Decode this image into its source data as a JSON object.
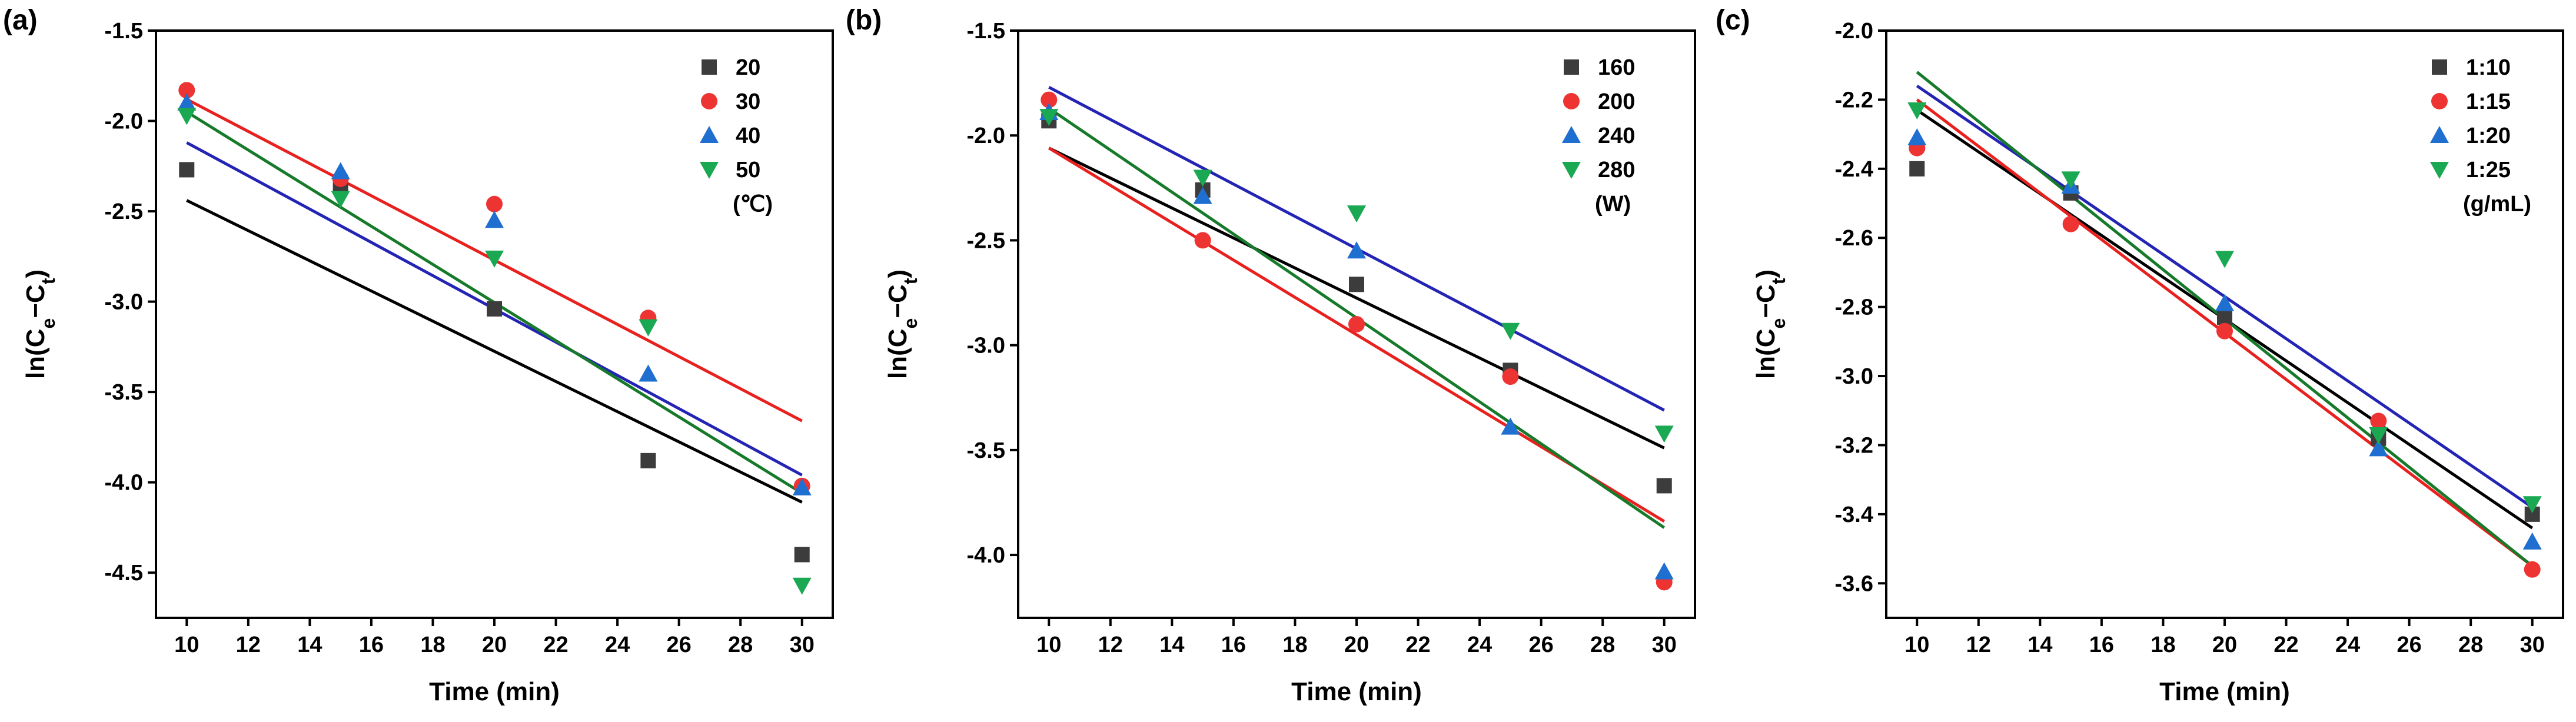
{
  "chart_data": [
    {
      "type": "scatter",
      "panel_label": "(a)",
      "xlabel": "Time (min)",
      "ylabel": {
        "pre": "ln(C",
        "sub1": "e",
        "mid": "−C",
        "sub2": "t",
        "post": ")"
      },
      "xlim": [
        9,
        31
      ],
      "ylim": [
        -4.75,
        -1.5
      ],
      "xticks": [
        10,
        12,
        14,
        16,
        18,
        20,
        22,
        24,
        26,
        28,
        30
      ],
      "yticks": [
        -4.5,
        -4.0,
        -3.5,
        -3.0,
        -2.5,
        -2.0,
        -1.5
      ],
      "ytick_labels": [
        "-4.5",
        "-4.0",
        "-3.5",
        "-3.0",
        "-2.5",
        "-2.0",
        "-1.5"
      ],
      "legend_unit": "(℃)",
      "legend_position": "top-right",
      "x": [
        10,
        15,
        20,
        25,
        30
      ],
      "series": [
        {
          "name": "20",
          "marker": "square",
          "color": "#3c3c3c",
          "line_color": "#000000",
          "values": [
            -2.27,
            -2.35,
            -3.04,
            -3.88,
            -4.4
          ],
          "fit": [
            -2.44,
            -4.11
          ]
        },
        {
          "name": "30",
          "marker": "circle",
          "color": "#ee3333",
          "line_color": "#e8201e",
          "values": [
            -1.83,
            -2.32,
            -2.46,
            -3.09,
            -4.02
          ],
          "fit": [
            -1.88,
            -3.66
          ]
        },
        {
          "name": "40",
          "marker": "triangle-up",
          "color": "#1f6fd0",
          "line_color": "#2424b4",
          "values": [
            -1.9,
            -2.28,
            -2.55,
            -3.4,
            -4.03
          ],
          "fit": [
            -2.12,
            -3.96
          ]
        },
        {
          "name": "50",
          "marker": "triangle-down",
          "color": "#1aa852",
          "line_color": "#167a2a",
          "values": [
            -1.97,
            -2.43,
            -2.76,
            -3.14,
            -4.57
          ],
          "fit": [
            -1.95,
            -4.06
          ]
        }
      ]
    },
    {
      "type": "scatter",
      "panel_label": "(b)",
      "xlabel": "Time (min)",
      "ylabel": {
        "pre": "ln(C",
        "sub1": "e",
        "mid": "−C",
        "sub2": "t",
        "post": ")"
      },
      "xlim": [
        9,
        31
      ],
      "ylim": [
        -4.3,
        -1.5
      ],
      "xticks": [
        10,
        12,
        14,
        16,
        18,
        20,
        22,
        24,
        26,
        28,
        30
      ],
      "yticks": [
        -4.0,
        -3.5,
        -3.0,
        -2.5,
        -2.0,
        -1.5
      ],
      "ytick_labels": [
        "-4.0",
        "-3.5",
        "-3.0",
        "-2.5",
        "-2.0",
        "-1.5"
      ],
      "legend_unit": "(W)",
      "legend_position": "top-right",
      "x": [
        10,
        15,
        20,
        25,
        30
      ],
      "series": [
        {
          "name": "160",
          "marker": "square",
          "color": "#3c3c3c",
          "line_color": "#000000",
          "values": [
            -1.93,
            -2.26,
            -2.71,
            -3.12,
            -3.67
          ],
          "fit": [
            -2.06,
            -3.49
          ]
        },
        {
          "name": "200",
          "marker": "circle",
          "color": "#ee3333",
          "line_color": "#e8201e",
          "values": [
            -1.83,
            -2.5,
            -2.9,
            -3.15,
            -4.13
          ],
          "fit": [
            -2.06,
            -3.84
          ]
        },
        {
          "name": "240",
          "marker": "triangle-up",
          "color": "#1f6fd0",
          "line_color": "#2424b4",
          "values": [
            -1.89,
            -2.29,
            -2.55,
            -3.39,
            -4.08
          ],
          "fit": [
            -1.77,
            -3.31
          ]
        },
        {
          "name": "280",
          "marker": "triangle-down",
          "color": "#1aa852",
          "line_color": "#167a2a",
          "values": [
            -1.91,
            -2.2,
            -2.37,
            -2.93,
            -3.42
          ],
          "fit": [
            -1.87,
            -3.87
          ]
        }
      ]
    },
    {
      "type": "scatter",
      "panel_label": "(c)",
      "xlabel": "Time (min)",
      "ylabel": {
        "pre": "ln(C",
        "sub1": "e",
        "mid": "−C",
        "sub2": "t",
        "post": ")"
      },
      "xlim": [
        9,
        31
      ],
      "ylim": [
        -3.7,
        -2.0
      ],
      "xticks": [
        10,
        12,
        14,
        16,
        18,
        20,
        22,
        24,
        26,
        28,
        30
      ],
      "yticks": [
        -3.6,
        -3.4,
        -3.2,
        -3.0,
        -2.8,
        -2.6,
        -2.4,
        -2.2,
        -2.0
      ],
      "ytick_labels": [
        "-3.6",
        "-3.4",
        "-3.2",
        "-3.0",
        "-2.8",
        "-2.6",
        "-2.4",
        "-2.2",
        "-2.0"
      ],
      "legend_unit": "(g/mL)",
      "legend_position": "top-right",
      "x": [
        10,
        15,
        20,
        25,
        30
      ],
      "series": [
        {
          "name": "1:10",
          "marker": "square",
          "color": "#3c3c3c",
          "line_color": "#000000",
          "values": [
            -2.4,
            -2.47,
            -2.83,
            -3.18,
            -3.4
          ],
          "fit": [
            -2.23,
            -3.44
          ]
        },
        {
          "name": "1:15",
          "marker": "circle",
          "color": "#ee3333",
          "line_color": "#e8201e",
          "values": [
            -2.34,
            -2.56,
            -2.87,
            -3.13,
            -3.56
          ],
          "fit": [
            -2.2,
            -3.55
          ]
        },
        {
          "name": "1:20",
          "marker": "triangle-up",
          "color": "#1f6fd0",
          "line_color": "#2424b4",
          "values": [
            -2.31,
            -2.45,
            -2.79,
            -3.21,
            -3.48
          ],
          "fit": [
            -2.16,
            -3.38
          ]
        },
        {
          "name": "1:25",
          "marker": "triangle-down",
          "color": "#1aa852",
          "line_color": "#167a2a",
          "values": [
            -2.23,
            -2.43,
            -2.66,
            -3.17,
            -3.37
          ],
          "fit": [
            -2.12,
            -3.55
          ]
        }
      ]
    }
  ]
}
